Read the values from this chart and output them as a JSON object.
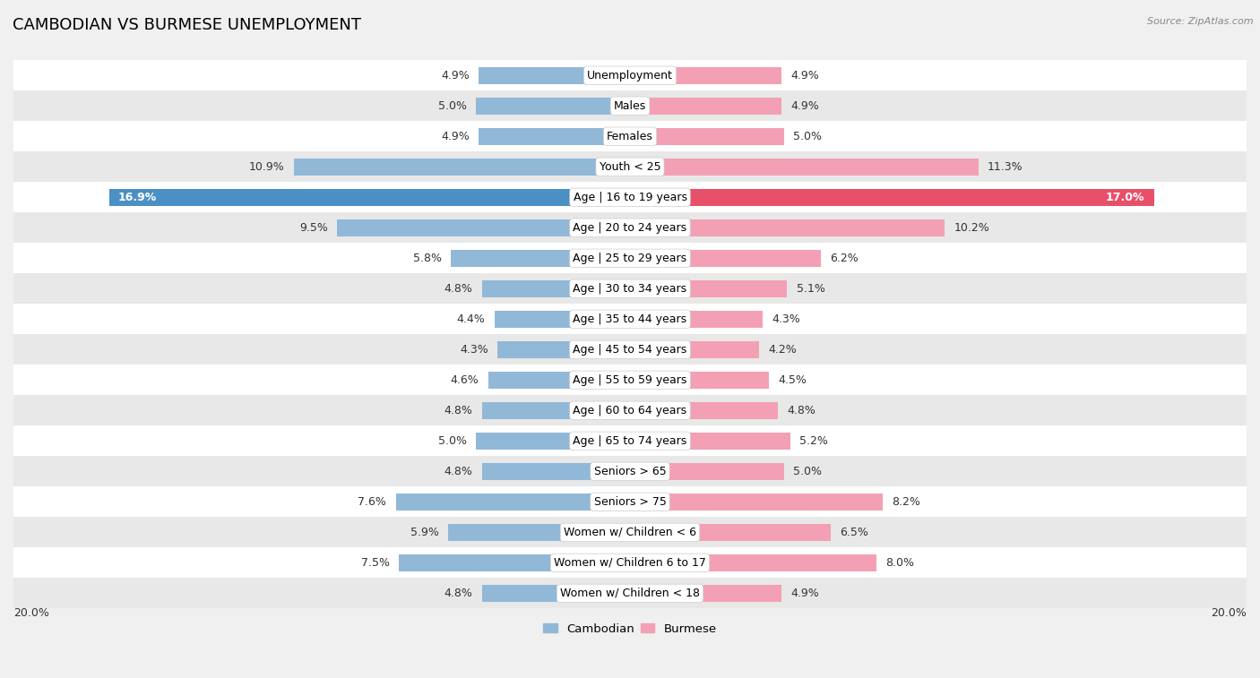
{
  "title": "CAMBODIAN VS BURMESE UNEMPLOYMENT",
  "source": "Source: ZipAtlas.com",
  "categories": [
    "Unemployment",
    "Males",
    "Females",
    "Youth < 25",
    "Age | 16 to 19 years",
    "Age | 20 to 24 years",
    "Age | 25 to 29 years",
    "Age | 30 to 34 years",
    "Age | 35 to 44 years",
    "Age | 45 to 54 years",
    "Age | 55 to 59 years",
    "Age | 60 to 64 years",
    "Age | 65 to 74 years",
    "Seniors > 65",
    "Seniors > 75",
    "Women w/ Children < 6",
    "Women w/ Children 6 to 17",
    "Women w/ Children < 18"
  ],
  "cambodian": [
    4.9,
    5.0,
    4.9,
    10.9,
    16.9,
    9.5,
    5.8,
    4.8,
    4.4,
    4.3,
    4.6,
    4.8,
    5.0,
    4.8,
    7.6,
    5.9,
    7.5,
    4.8
  ],
  "burmese": [
    4.9,
    4.9,
    5.0,
    11.3,
    17.0,
    10.2,
    6.2,
    5.1,
    4.3,
    4.2,
    4.5,
    4.8,
    5.2,
    5.0,
    8.2,
    6.5,
    8.0,
    4.9
  ],
  "cambodian_color": "#92b8d8",
  "burmese_color": "#f4a0b4",
  "highlight_cambodian_color": "#4a90c4",
  "highlight_burmese_color": "#e8506a",
  "highlight_text_color": "#ffffff",
  "bar_height": 0.55,
  "xlim": 20,
  "bg_color": "#f0f0f0",
  "row_bg_white": "#ffffff",
  "row_bg_gray": "#e8e8e8",
  "title_fontsize": 13,
  "label_fontsize": 9,
  "value_fontsize": 9,
  "source_fontsize": 8
}
